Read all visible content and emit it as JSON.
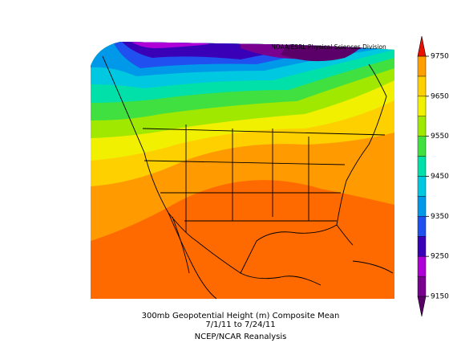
{
  "credit": "NOAA/ESRL Physical Sciences Division",
  "caption": {
    "line1": "300mb Geopotential Height (m) Composite Mean",
    "line2": "7/1/11  to 7/24/11",
    "line3": "NCEP/NCAR Reanalysis"
  },
  "colorbar": {
    "lim": [
      9150,
      9750
    ],
    "ticks": [
      9150,
      9250,
      9350,
      9450,
      9550,
      9650,
      9750
    ],
    "colors": [
      "#5a0068",
      "#7a0090",
      "#b000d8",
      "#3a00b8",
      "#2050f0",
      "#0098e8",
      "#00c8e0",
      "#00e0a8",
      "#40e040",
      "#a0e800",
      "#f0f000",
      "#ffd000",
      "#ffa000",
      "#e81000"
    ]
  }
}
